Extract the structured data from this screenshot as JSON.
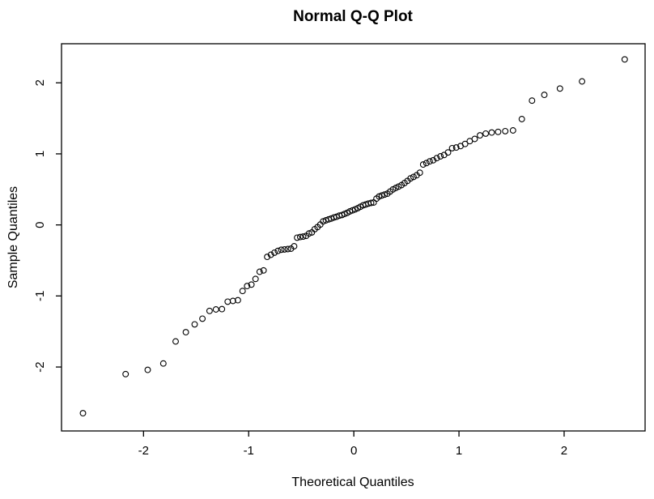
{
  "figure": {
    "background": "#ffffff",
    "foreground": "#000000"
  },
  "chart_data": {
    "type": "scatter",
    "title": "Normal Q-Q Plot",
    "xlabel": "Theoretical Quantiles",
    "ylabel": "Sample Quantiles",
    "x_ticks": [
      -2,
      -1,
      0,
      1,
      2
    ],
    "y_ticks": [
      -2,
      -1,
      0,
      1,
      2
    ],
    "xlim": [
      -2.78,
      2.77
    ],
    "ylim": [
      -2.9,
      2.55
    ],
    "grid": false,
    "legend": "none",
    "marker": "open-circle",
    "marker_color": "#000000",
    "n_points": 100,
    "points": [
      [
        -2.576,
        -2.65
      ],
      [
        -2.17,
        -2.1
      ],
      [
        -1.96,
        -2.04
      ],
      [
        -1.812,
        -1.95
      ],
      [
        -1.695,
        -1.64
      ],
      [
        -1.598,
        -1.51
      ],
      [
        -1.514,
        -1.4
      ],
      [
        -1.44,
        -1.32
      ],
      [
        -1.372,
        -1.21
      ],
      [
        -1.311,
        -1.19
      ],
      [
        -1.254,
        -1.185
      ],
      [
        -1.2,
        -1.08
      ],
      [
        -1.15,
        -1.07
      ],
      [
        -1.103,
        -1.06
      ],
      [
        -1.058,
        -0.93
      ],
      [
        -1.015,
        -0.86
      ],
      [
        -0.974,
        -0.84
      ],
      [
        -0.935,
        -0.76
      ],
      [
        -0.896,
        -0.66
      ],
      [
        -0.859,
        -0.64
      ],
      [
        -0.824,
        -0.45
      ],
      [
        -0.789,
        -0.42
      ],
      [
        -0.755,
        -0.39
      ],
      [
        -0.722,
        -0.365
      ],
      [
        -0.69,
        -0.35
      ],
      [
        -0.659,
        -0.345
      ],
      [
        -0.628,
        -0.34
      ],
      [
        -0.598,
        -0.335
      ],
      [
        -0.568,
        -0.3
      ],
      [
        -0.539,
        -0.18
      ],
      [
        -0.51,
        -0.17
      ],
      [
        -0.482,
        -0.165
      ],
      [
        -0.454,
        -0.155
      ],
      [
        -0.426,
        -0.12
      ],
      [
        -0.399,
        -0.105
      ],
      [
        -0.372,
        -0.06
      ],
      [
        -0.345,
        -0.03
      ],
      [
        -0.319,
        0.005
      ],
      [
        -0.292,
        0.05
      ],
      [
        -0.266,
        0.065
      ],
      [
        -0.24,
        0.078
      ],
      [
        -0.215,
        0.09
      ],
      [
        -0.189,
        0.105
      ],
      [
        -0.164,
        0.115
      ],
      [
        -0.138,
        0.13
      ],
      [
        -0.113,
        0.14
      ],
      [
        -0.088,
        0.155
      ],
      [
        -0.063,
        0.17
      ],
      [
        -0.038,
        0.19
      ],
      [
        -0.013,
        0.205
      ],
      [
        0.013,
        0.22
      ],
      [
        0.038,
        0.237
      ],
      [
        0.063,
        0.256
      ],
      [
        0.088,
        0.276
      ],
      [
        0.113,
        0.287
      ],
      [
        0.138,
        0.3
      ],
      [
        0.164,
        0.31
      ],
      [
        0.189,
        0.315
      ],
      [
        0.215,
        0.37
      ],
      [
        0.24,
        0.4
      ],
      [
        0.266,
        0.415
      ],
      [
        0.292,
        0.427
      ],
      [
        0.319,
        0.44
      ],
      [
        0.345,
        0.47
      ],
      [
        0.372,
        0.5
      ],
      [
        0.399,
        0.52
      ],
      [
        0.426,
        0.54
      ],
      [
        0.454,
        0.56
      ],
      [
        0.482,
        0.59
      ],
      [
        0.51,
        0.62
      ],
      [
        0.539,
        0.655
      ],
      [
        0.568,
        0.675
      ],
      [
        0.598,
        0.7
      ],
      [
        0.628,
        0.735
      ],
      [
        0.659,
        0.85
      ],
      [
        0.69,
        0.87
      ],
      [
        0.722,
        0.895
      ],
      [
        0.755,
        0.91
      ],
      [
        0.789,
        0.94
      ],
      [
        0.824,
        0.965
      ],
      [
        0.859,
        0.985
      ],
      [
        0.896,
        1.02
      ],
      [
        0.935,
        1.08
      ],
      [
        0.974,
        1.09
      ],
      [
        1.015,
        1.11
      ],
      [
        1.058,
        1.14
      ],
      [
        1.103,
        1.18
      ],
      [
        1.15,
        1.21
      ],
      [
        1.2,
        1.26
      ],
      [
        1.254,
        1.285
      ],
      [
        1.311,
        1.3
      ],
      [
        1.372,
        1.31
      ],
      [
        1.44,
        1.32
      ],
      [
        1.514,
        1.33
      ],
      [
        1.598,
        1.49
      ],
      [
        1.695,
        1.75
      ],
      [
        1.812,
        1.83
      ],
      [
        1.96,
        1.92
      ],
      [
        2.17,
        2.02
      ],
      [
        2.576,
        2.33
      ]
    ]
  }
}
